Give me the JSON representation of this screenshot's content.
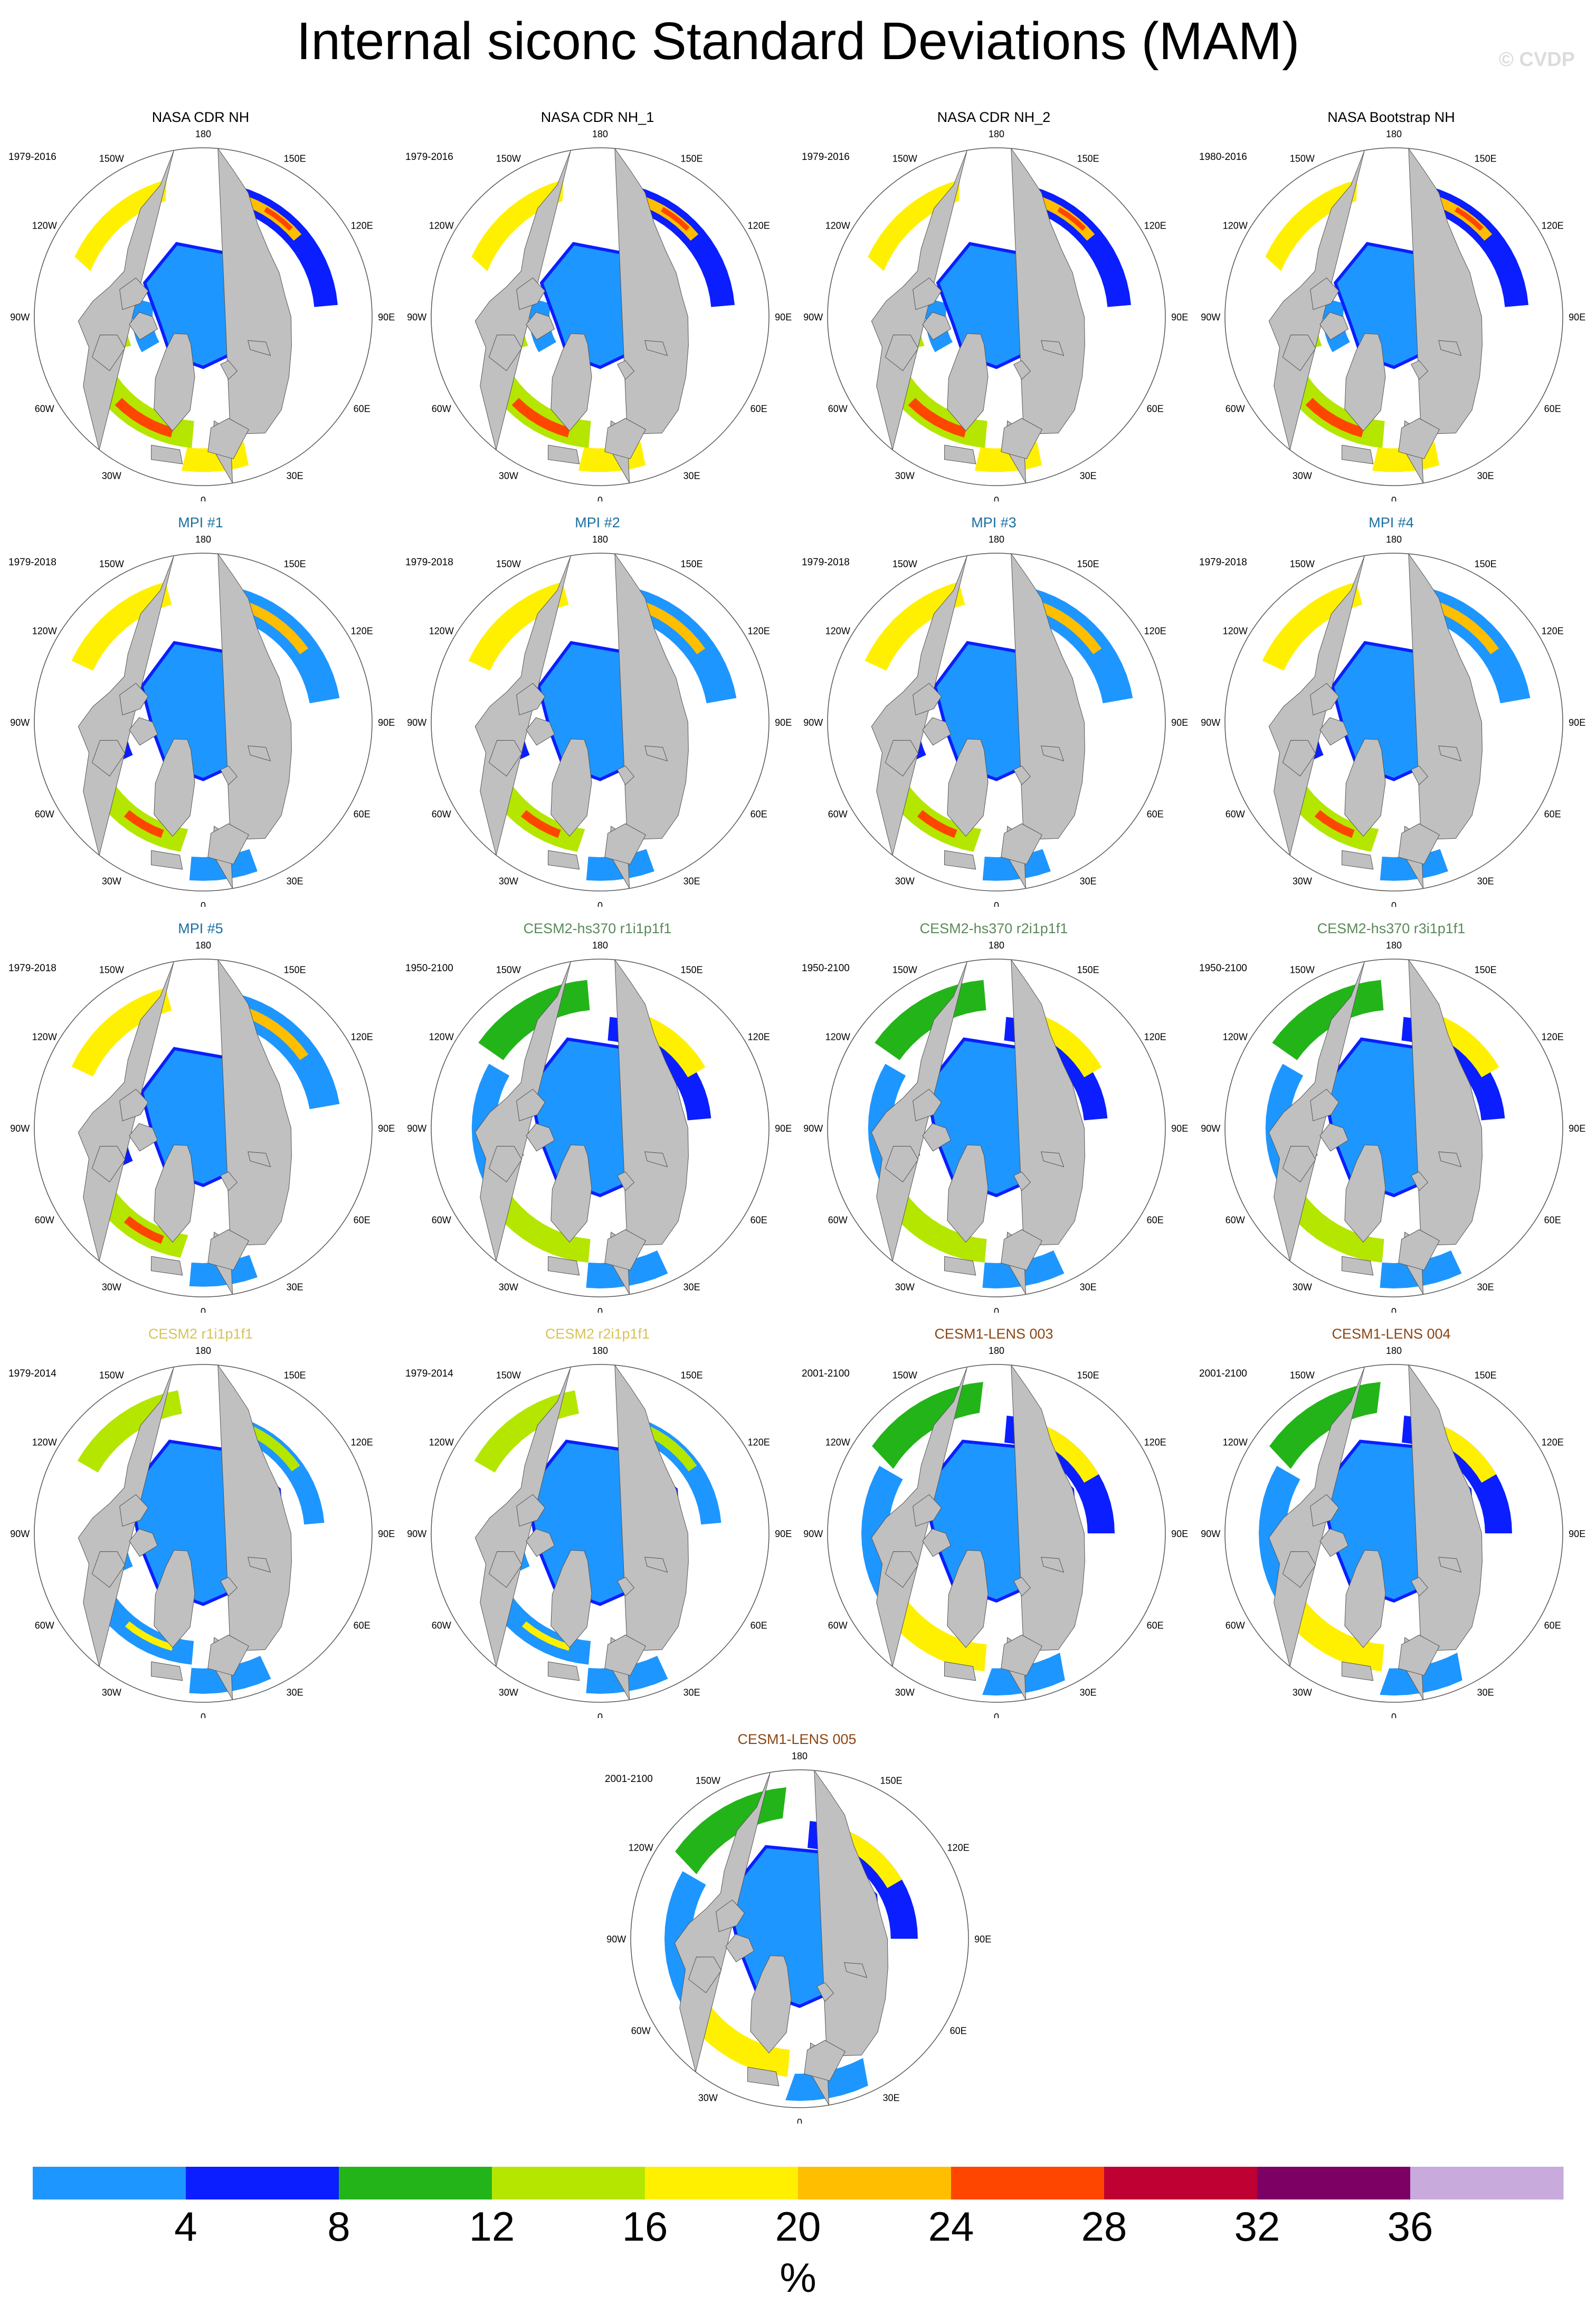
{
  "title": "Internal siconc Standard Deviations (MAM)",
  "watermark": "© CVDP",
  "map_longitude_labels": [
    "180",
    "150E",
    "120E",
    "90E",
    "60E",
    "30E",
    "0",
    "30W",
    "60W",
    "90W",
    "120W",
    "150W"
  ],
  "panels": [
    {
      "title": "NASA CDR NH",
      "title_color": "#000000",
      "period": "1979-2016",
      "source": "observations"
    },
    {
      "title": "NASA CDR NH_1",
      "title_color": "#000000",
      "period": "1979-2016",
      "source": "observations"
    },
    {
      "title": "NASA CDR NH_2",
      "title_color": "#000000",
      "period": "1979-2016",
      "source": "observations"
    },
    {
      "title": "NASA Bootstrap NH",
      "title_color": "#000000",
      "period": "1980-2016",
      "source": "observations"
    },
    {
      "title": "MPI #1",
      "title_color": "#1a6fa0",
      "period": "1979-2018",
      "source": "mpi"
    },
    {
      "title": "MPI #2",
      "title_color": "#1a6fa0",
      "period": "1979-2018",
      "source": "mpi"
    },
    {
      "title": "MPI #3",
      "title_color": "#1a6fa0",
      "period": "1979-2018",
      "source": "mpi"
    },
    {
      "title": "MPI #4",
      "title_color": "#1a6fa0",
      "period": "1979-2018",
      "source": "mpi"
    },
    {
      "title": "MPI #5",
      "title_color": "#1a6fa0",
      "period": "1979-2018",
      "source": "mpi"
    },
    {
      "title": "CESM2-hs370 r1i1p1f1",
      "title_color": "#5a8a5a",
      "period": "1950-2100",
      "source": "cesm2hs"
    },
    {
      "title": "CESM2-hs370 r2i1p1f1",
      "title_color": "#5a8a5a",
      "period": "1950-2100",
      "source": "cesm2hs"
    },
    {
      "title": "CESM2-hs370 r3i1p1f1",
      "title_color": "#5a8a5a",
      "period": "1950-2100",
      "source": "cesm2hs"
    },
    {
      "title": "CESM2 r1i1p1f1",
      "title_color": "#d6c25a",
      "period": "1979-2014",
      "source": "cesm2"
    },
    {
      "title": "CESM2 r2i1p1f1",
      "title_color": "#d6c25a",
      "period": "1979-2014",
      "source": "cesm2"
    },
    {
      "title": "CESM1-LENS 003",
      "title_color": "#8b4513",
      "period": "2001-2100",
      "source": "lens"
    },
    {
      "title": "CESM1-LENS 004",
      "title_color": "#8b4513",
      "period": "2001-2100",
      "source": "lens"
    },
    {
      "title": "CESM1-LENS 005",
      "title_color": "#8b4513",
      "period": "2001-2100",
      "source": "lens"
    }
  ],
  "colorbar": {
    "colors": [
      "#1e96ff",
      "#0a1eff",
      "#23b419",
      "#b4e600",
      "#fff000",
      "#ffbe00",
      "#ff4600",
      "#be0032",
      "#7d0064",
      "#c8aadc"
    ],
    "tick_labels": [
      "4",
      "8",
      "12",
      "16",
      "20",
      "24",
      "28",
      "32",
      "36"
    ],
    "unit": "%"
  },
  "colors": {
    "land": "#c0c0c0",
    "ocean": "#ffffff",
    "border": "#555555"
  }
}
